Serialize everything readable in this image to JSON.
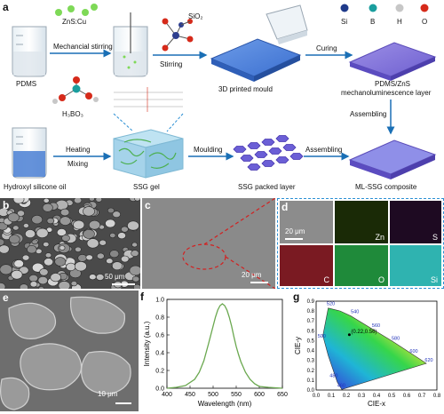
{
  "panel_a": {
    "label": "a",
    "pdms": "PDMS",
    "zns": "ZnS:Cu",
    "mech_stirring": "Mechancial stirring",
    "sio2": "SiO₂",
    "stirring": "Stirring",
    "mould": "3D printed mould",
    "curing": "Curing",
    "legend": [
      "Si",
      "B",
      "H",
      "O"
    ],
    "legend_colors": [
      "#1f3a8a",
      "#1a9e9e",
      "#c7c7c7",
      "#d62a1a"
    ],
    "pdms_zns_l1": "PDMS/ZnS",
    "pdms_zns_l2": "mechanoluminescence layer",
    "assembling1": "Assembling",
    "h3bo3": "H₃BO₃",
    "heating": "Heating",
    "mixing": "Mixing",
    "moulding": "Moulding",
    "assembling2": "Assembling",
    "hydroxyl": "Hydroxyl silicone oil",
    "ssg_gel": "SSG gel",
    "ssg_packed": "SSG packed layer",
    "composite": "ML-SSG composite"
  },
  "panel_b": {
    "label": "b",
    "scale": "50 μm"
  },
  "panel_c": {
    "label": "c",
    "scale": "20 μm"
  },
  "panel_d": {
    "label": "d",
    "scale": "20 μm",
    "maps": [
      "Zn",
      "S",
      "C",
      "O",
      "Si"
    ]
  },
  "panel_e": {
    "label": "e",
    "scale": "10 μm"
  },
  "panel_f": {
    "label": "f"
  },
  "panel_g": {
    "label": "g",
    "coord": "(0.22,0.56)"
  },
  "chart_data": [
    {
      "type": "line",
      "xlabel": "Wavelength (nm)",
      "ylabel": "Intensity (a.u.)",
      "xlim": [
        400,
        650
      ],
      "ylim": [
        0,
        1.0
      ],
      "xticks": [
        400,
        450,
        500,
        550,
        600,
        650
      ],
      "yticks": [
        0.0,
        0.2,
        0.4,
        0.6,
        0.8,
        1.0
      ],
      "series": [
        {
          "color": "#6aa84f",
          "x": [
            400,
            420,
            440,
            460,
            470,
            480,
            490,
            500,
            505,
            510,
            515,
            520,
            525,
            530,
            535,
            540,
            545,
            550,
            555,
            560,
            570,
            580,
            590,
            600,
            620,
            650
          ],
          "y": [
            0.0,
            0.01,
            0.03,
            0.1,
            0.18,
            0.31,
            0.5,
            0.7,
            0.8,
            0.88,
            0.93,
            0.95,
            0.93,
            0.88,
            0.8,
            0.7,
            0.58,
            0.47,
            0.38,
            0.3,
            0.18,
            0.1,
            0.05,
            0.02,
            0.01,
            0.0
          ]
        }
      ]
    },
    {
      "type": "scatter",
      "xlabel": "CIE-x",
      "ylabel": "CIE-y",
      "xlim": [
        0.0,
        0.8
      ],
      "ylim": [
        0.0,
        0.9
      ],
      "xticks": [
        "0.0",
        "0.1",
        "0.2",
        "0.3",
        "0.4",
        "0.5",
        "0.6",
        "0.7",
        "0.8"
      ],
      "yticks": [
        "0.0",
        "0.1",
        "0.2",
        "0.3",
        "0.4",
        "0.5",
        "0.6",
        "0.7",
        "0.8",
        "0.9"
      ],
      "wavelength_labels": [
        "460",
        "480",
        "500",
        "520",
        "540",
        "560",
        "580",
        "600",
        "620"
      ],
      "point": {
        "x": 0.22,
        "y": 0.56
      }
    }
  ]
}
